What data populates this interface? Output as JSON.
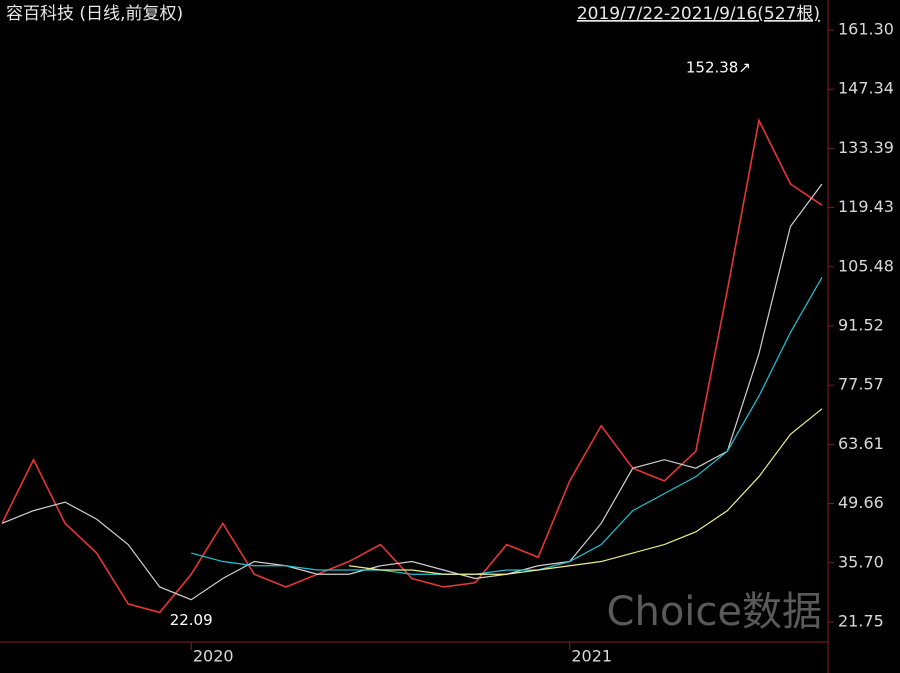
{
  "chart_data": {
    "type": "line",
    "title": "容百科技 (日线,前复权)",
    "subtitle": "2019/7/22-2021/9/16(527根)",
    "watermark": "Choice数据",
    "annotations": [
      {
        "text": "152.38↗",
        "index": 24,
        "value": 152.38
      },
      {
        "text": "22.09",
        "index": 5,
        "value": 22.09
      }
    ],
    "categories": [
      null,
      null,
      null,
      null,
      null,
      null,
      "2020",
      null,
      null,
      null,
      null,
      null,
      null,
      null,
      null,
      null,
      null,
      null,
      "2021",
      null,
      null,
      null,
      null,
      null,
      null,
      null,
      null
    ],
    "series": [
      {
        "color": "#e53535",
        "values": [
          45,
          60,
          45,
          38,
          26,
          24,
          33,
          45,
          33,
          30,
          33,
          36,
          40,
          32,
          30,
          31,
          40,
          37,
          55,
          68,
          58,
          55,
          62,
          100,
          140,
          125,
          120
        ]
      },
      {
        "color": "#d0d0d0",
        "values": [
          45,
          48,
          50,
          46,
          40,
          30,
          27,
          32,
          36,
          35,
          33,
          33,
          35,
          36,
          34,
          32,
          33,
          35,
          36,
          45,
          58,
          60,
          58,
          62,
          85,
          115,
          125
        ]
      },
      {
        "color": "#22c3d6",
        "values": [
          null,
          null,
          null,
          null,
          null,
          null,
          38,
          36,
          35,
          35,
          34,
          34,
          34,
          33,
          33,
          33,
          34,
          34,
          36,
          40,
          48,
          52,
          56,
          62,
          75,
          90,
          103
        ]
      },
      {
        "color": "#eeee88",
        "values": [
          null,
          null,
          null,
          null,
          null,
          null,
          null,
          null,
          null,
          null,
          null,
          35,
          34,
          34,
          33,
          33,
          33,
          34,
          35,
          36,
          38,
          40,
          43,
          48,
          56,
          66,
          72
        ]
      }
    ],
    "ylim": [
      17.5,
      167.9
    ],
    "yticks": [
      {
        "value": 21.75,
        "label": "21.75"
      },
      {
        "value": 35.7,
        "label": "35.70"
      },
      {
        "value": 49.66,
        "label": "49.66"
      },
      {
        "value": 63.61,
        "label": "63.61"
      },
      {
        "value": 77.57,
        "label": "77.57"
      },
      {
        "value": 91.52,
        "label": "91.52"
      },
      {
        "value": 105.48,
        "label": "105.48"
      },
      {
        "value": 119.43,
        "label": "119.43"
      },
      {
        "value": 133.39,
        "label": "133.39"
      },
      {
        "value": 147.34,
        "label": "147.34"
      },
      {
        "value": 161.3,
        "label": "161.30"
      }
    ],
    "grid": false
  }
}
